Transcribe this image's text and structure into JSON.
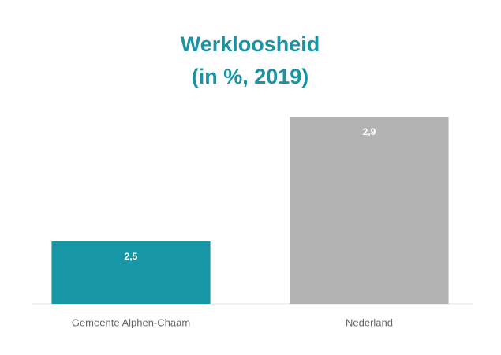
{
  "chart_data": {
    "type": "bar",
    "title": "Werkloosheid",
    "subtitle": "(in %, 2019)",
    "categories": [
      "Gemeente Alphen-Chaam",
      "Nederland"
    ],
    "values": [
      2.5,
      2.9
    ],
    "value_labels": [
      "2,5",
      "2,9"
    ],
    "colors": [
      "#1797a6",
      "#b3b3b3"
    ],
    "ylim": [
      2.3,
      2.9
    ]
  }
}
